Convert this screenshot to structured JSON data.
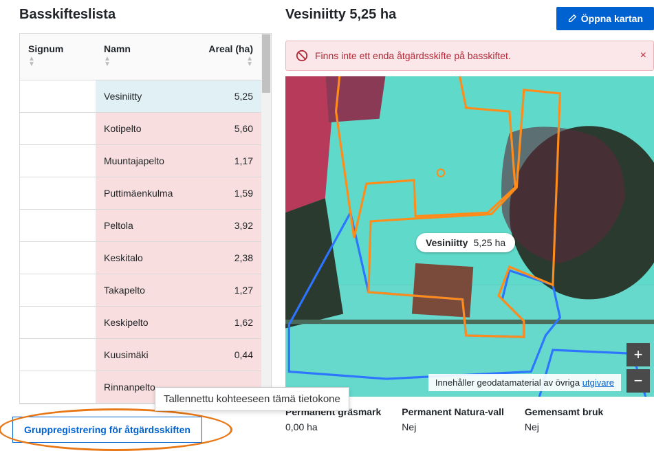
{
  "left_title": "Basskifteslista",
  "right_title": "Vesiniitty 5,25 ha",
  "open_map_label": "Öppna kartan",
  "alert_text": "Finns inte ett enda åtgärdsskifte på basskiftet.",
  "columns": {
    "signum": "Signum",
    "name": "Namn",
    "area": "Areal (ha)"
  },
  "rows": [
    {
      "signum": "",
      "name": "Vesiniitty",
      "area": "5,25",
      "selected": true
    },
    {
      "signum": "",
      "name": "Kotipelto",
      "area": "5,60"
    },
    {
      "signum": "",
      "name": "Muuntajapelto",
      "area": "1,17"
    },
    {
      "signum": "",
      "name": "Puttimäenkulma",
      "area": "1,59"
    },
    {
      "signum": "",
      "name": "Peltola",
      "area": "3,92"
    },
    {
      "signum": "",
      "name": "Keskitalo",
      "area": "2,38"
    },
    {
      "signum": "",
      "name": "Takapelto",
      "area": "1,27"
    },
    {
      "signum": "",
      "name": "Keskipelto",
      "area": "1,62"
    },
    {
      "signum": "",
      "name": "Kuusimäki",
      "area": "0,44"
    },
    {
      "signum": "",
      "name": "Rinnanpelto",
      "area": ""
    }
  ],
  "group_button": "Gruppregistrering för åtgärdsskiften",
  "tooltip": "Tallennettu kohteeseen tämä tietokone",
  "map_label": {
    "name": "Vesiniitty",
    "area": "5,25 ha"
  },
  "map_attrib_prefix": "Innehåller geodatamaterial av övriga ",
  "map_attrib_link": "utgivare",
  "info": {
    "grassland": {
      "label": "Permanent gräsmark",
      "value": "0,00 ha"
    },
    "natura": {
      "label": "Permanent Natura-vall",
      "value": "Nej"
    },
    "shared": {
      "label": "Gemensamt bruk",
      "value": "Nej"
    }
  },
  "colors": {
    "primary": "#0062d1",
    "alert_bg": "#fbe7e9",
    "alert_border": "#e8b4b9",
    "alert_text": "#b32838",
    "row_bg": "#f8dede",
    "selected_bg": "#e1f0f5",
    "highlight_ellipse": "#e87817",
    "map_field": "#5fd9c9",
    "map_forest": "#b83a5a",
    "map_darkforest": "#2a3a2e",
    "map_orange": "#ff8c1a",
    "map_blue": "#2d74ff"
  }
}
